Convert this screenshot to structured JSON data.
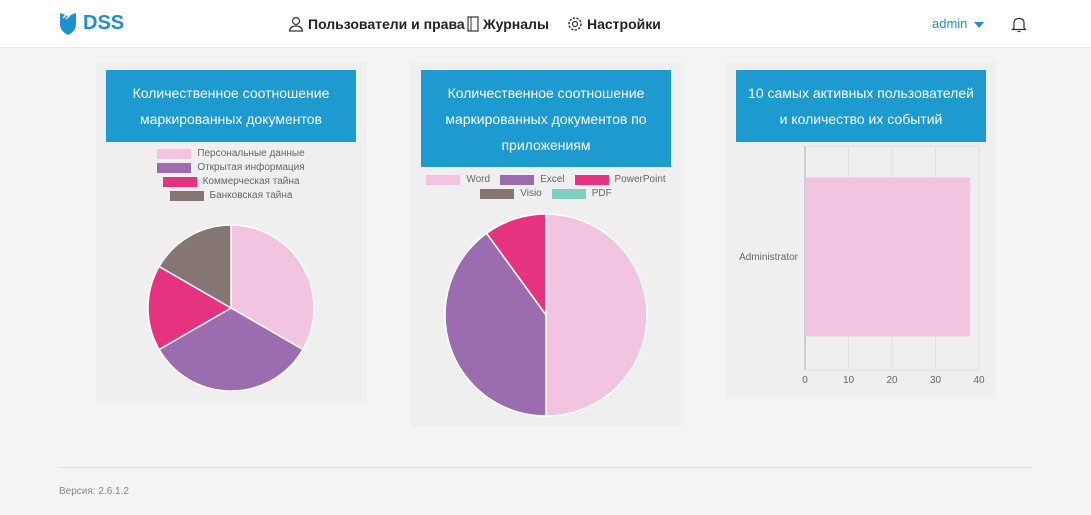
{
  "nav": {
    "logo": "DSS",
    "users": "Пользователи и права",
    "journals": "Журналы",
    "settings": "Настройки",
    "user": "admin"
  },
  "colors": {
    "accent": "#1d9ad0",
    "pink": "#f2c4df",
    "purple": "#9b6dae",
    "magenta": "#e6337f",
    "brown": "#857674",
    "teal": "#7dcfc0"
  },
  "cards": [
    {
      "title": "Количественное соотношение маркированных документов"
    },
    {
      "title": "Количественное соотношение маркированных документов по приложениям"
    },
    {
      "title": "10 самых активных пользователей и количество их событий"
    }
  ],
  "chart_data": [
    {
      "type": "pie",
      "title": "Количественное соотношение маркированных документов",
      "labels": [
        "Персональные данные",
        "Открытая информация",
        "Коммерческая тайна",
        "Банковская тайна"
      ],
      "values": [
        2,
        2,
        1,
        1
      ],
      "colors": [
        "#f2c4df",
        "#9b6dae",
        "#e6337f",
        "#857674"
      ]
    },
    {
      "type": "pie",
      "title": "Количественное соотношение маркированных документов по приложениям",
      "labels": [
        "Word",
        "Excel",
        "PowerPoint",
        "Visio",
        "PDF"
      ],
      "values": [
        5,
        4,
        1,
        0,
        0
      ],
      "colors": [
        "#f2c4df",
        "#9b6dae",
        "#e6337f",
        "#857674",
        "#7dcfc0"
      ]
    },
    {
      "type": "bar",
      "orientation": "horizontal",
      "title": "10 самых активных пользователей и количество их событий",
      "categories": [
        "Administrator"
      ],
      "values": [
        38
      ],
      "xlim": [
        0,
        40
      ],
      "xticks": [
        "0",
        "10",
        "20",
        "30",
        "40"
      ],
      "color": "#f2c4df",
      "grid": true
    }
  ],
  "footer": {
    "version": "Версия: 2.6.1.2"
  }
}
